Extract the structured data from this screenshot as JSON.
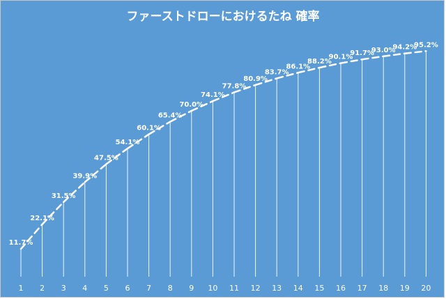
{
  "chart_data": {
    "type": "line",
    "title": "ファーストドローにおけるたね 確率",
    "xlabel": "",
    "ylabel": "",
    "categories": [
      "1",
      "2",
      "3",
      "4",
      "5",
      "6",
      "7",
      "8",
      "9",
      "10",
      "11",
      "12",
      "13",
      "14",
      "15",
      "16",
      "17",
      "18",
      "19",
      "20"
    ],
    "values": [
      11.7,
      22.1,
      31.5,
      39.9,
      47.5,
      54.1,
      60.1,
      65.4,
      70.0,
      74.1,
      77.8,
      80.9,
      83.7,
      86.1,
      88.2,
      90.1,
      91.7,
      93.0,
      94.2,
      95.2
    ],
    "data_labels": [
      "11.7%",
      "22.1%",
      "31.5%",
      "39.9%",
      "47.5%",
      "54.1%",
      "60.1%",
      "65.4%",
      "70.0%",
      "74.1%",
      "77.8%",
      "80.9%",
      "83.7%",
      "86.1%",
      "88.2%",
      "90.1%",
      "91.7%",
      "93.0%",
      "94.2%",
      "95.2%"
    ],
    "ylim": [
      0,
      100
    ],
    "grid": false,
    "legend": "none",
    "line_style": "dashed",
    "drop_lines": true,
    "colors": {
      "background": "#5b9bd5",
      "line": "#ffffff",
      "text": "#ffffff"
    }
  }
}
